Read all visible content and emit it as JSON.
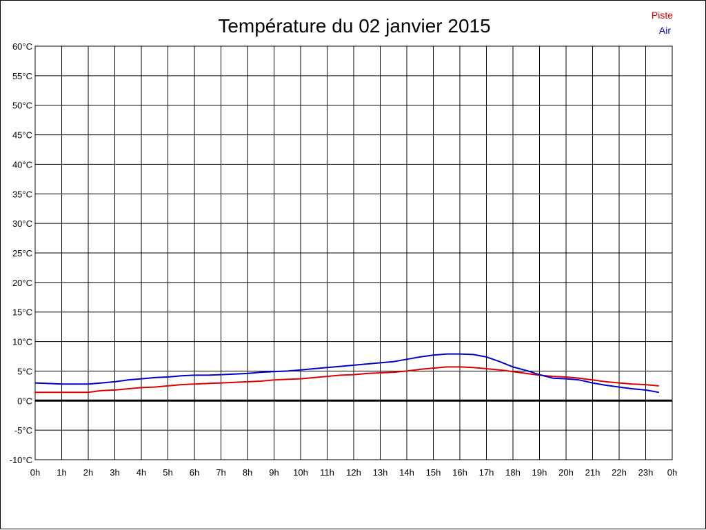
{
  "chart_data": {
    "type": "line",
    "title": "Température du 02 janvier 2015",
    "xlabel": "",
    "ylabel": "",
    "x_tick_labels": [
      "0h",
      "1h",
      "2h",
      "3h",
      "4h",
      "5h",
      "6h",
      "7h",
      "8h",
      "9h",
      "10h",
      "11h",
      "12h",
      "13h",
      "14h",
      "15h",
      "16h",
      "17h",
      "18h",
      "19h",
      "20h",
      "21h",
      "22h",
      "23h",
      "0h"
    ],
    "y_tick_labels": [
      "60°C",
      "55°C",
      "50°C",
      "45°C",
      "40°C",
      "35°C",
      "30°C",
      "25°C",
      "20°C",
      "15°C",
      "10°C",
      "5°C",
      "0°C",
      "-5°C",
      "-10°C"
    ],
    "xlim": [
      0,
      24
    ],
    "ylim": [
      -10,
      60
    ],
    "grid": true,
    "legend_position": "top-right",
    "zero_line": true,
    "series": [
      {
        "name": "Piste",
        "color": "#dd0000",
        "x": [
          0,
          0.5,
          1,
          1.5,
          2,
          2.5,
          3,
          3.5,
          4,
          4.5,
          5,
          5.5,
          6,
          6.5,
          7,
          7.5,
          8,
          8.5,
          9,
          9.5,
          10,
          10.5,
          11,
          11.5,
          12,
          12.5,
          13,
          13.5,
          14,
          14.5,
          15,
          15.5,
          16,
          16.5,
          17,
          17.5,
          18,
          18.5,
          19,
          19.5,
          20,
          20.5,
          21,
          21.5,
          22,
          22.5,
          23,
          23.5
        ],
        "values": [
          1.4,
          1.4,
          1.4,
          1.4,
          1.4,
          1.7,
          1.8,
          2.0,
          2.2,
          2.3,
          2.5,
          2.7,
          2.8,
          2.9,
          3.0,
          3.1,
          3.2,
          3.3,
          3.5,
          3.6,
          3.7,
          3.9,
          4.1,
          4.3,
          4.4,
          4.6,
          4.7,
          4.8,
          5.0,
          5.3,
          5.5,
          5.7,
          5.7,
          5.6,
          5.4,
          5.2,
          4.9,
          4.6,
          4.3,
          4.1,
          4.0,
          3.8,
          3.5,
          3.2,
          3.0,
          2.8,
          2.7,
          2.5
        ]
      },
      {
        "name": "Air",
        "color": "#0000cc",
        "x": [
          0,
          0.5,
          1,
          1.5,
          2,
          2.5,
          3,
          3.5,
          4,
          4.5,
          5,
          5.5,
          6,
          6.5,
          7,
          7.5,
          8,
          8.5,
          9,
          9.5,
          10,
          10.5,
          11,
          11.5,
          12,
          12.5,
          13,
          13.5,
          14,
          14.5,
          15,
          15.5,
          16,
          16.5,
          17,
          17.5,
          18,
          18.5,
          19,
          19.5,
          20,
          20.5,
          21,
          21.5,
          22,
          22.5,
          23,
          23.5
        ],
        "values": [
          3.0,
          2.9,
          2.8,
          2.8,
          2.8,
          3.0,
          3.2,
          3.5,
          3.7,
          3.9,
          4.0,
          4.2,
          4.3,
          4.3,
          4.4,
          4.5,
          4.6,
          4.8,
          4.9,
          5.0,
          5.2,
          5.4,
          5.6,
          5.8,
          6.0,
          6.2,
          6.4,
          6.6,
          7.0,
          7.4,
          7.7,
          7.9,
          7.9,
          7.8,
          7.4,
          6.6,
          5.7,
          5.1,
          4.4,
          3.8,
          3.7,
          3.5,
          3.0,
          2.6,
          2.3,
          2.0,
          1.8,
          1.4
        ]
      }
    ]
  }
}
